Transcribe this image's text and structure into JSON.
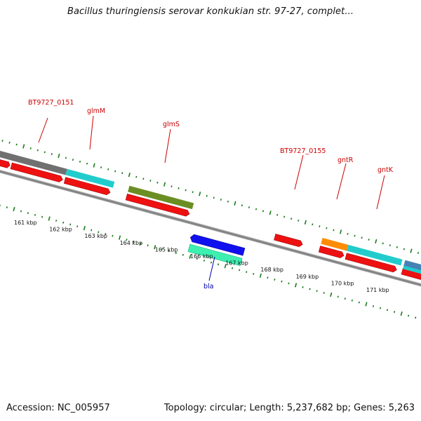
{
  "title": "Bacillus thuringiensis serovar konkukian str. 97-27, complet...",
  "footer": {
    "accession": "Accession: NC_005957",
    "summary": "Topology: circular; Length: 5,237,682 bp; Genes: 5,263"
  },
  "colors": {
    "label_forward": "#cc0000",
    "label_reverse": "#0000aa",
    "ticks": "#1a7a1a",
    "backbone": "#888888"
  },
  "kbp_labels": [
    "161 kbp",
    "162 kbp",
    "163 kbp",
    "164 kbp",
    "165 kbp",
    "166 kbp",
    "167 kbp",
    "168 kbp",
    "169 kbp",
    "170 kbp",
    "171 kbp"
  ],
  "gene_labels": [
    {
      "id": "BT9727_0151",
      "text": "BT9727_0151",
      "strand": "forward"
    },
    {
      "id": "glmM",
      "text": "glmM",
      "strand": "forward"
    },
    {
      "id": "glmS",
      "text": "glmS",
      "strand": "forward"
    },
    {
      "id": "BT9727_0155",
      "text": "BT9727_0155",
      "strand": "forward"
    },
    {
      "id": "gntR",
      "text": "gntR",
      "strand": "forward"
    },
    {
      "id": "gntK",
      "text": "gntK",
      "strand": "forward"
    },
    {
      "id": "bla",
      "text": "bla",
      "strand": "reverse"
    }
  ]
}
